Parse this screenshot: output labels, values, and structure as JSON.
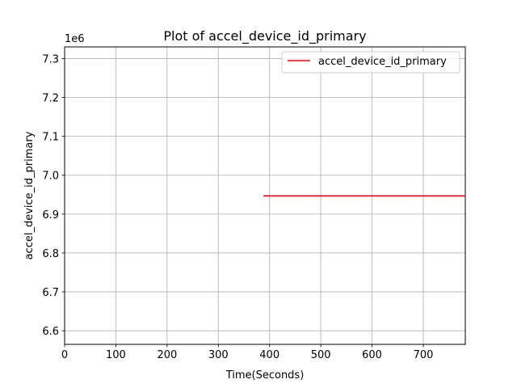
{
  "chart_data": {
    "type": "line",
    "title": "Plot of accel_device_id_primary",
    "xlabel": "Time(Seconds)",
    "ylabel": "accel_device_id_primary",
    "y_offset_text": "1e6",
    "xlim": [
      0,
      782
    ],
    "ylim": [
      6565000,
      7330000
    ],
    "x_ticks": [
      0,
      100,
      200,
      300,
      400,
      500,
      600,
      700
    ],
    "x_tick_labels": [
      "0",
      "100",
      "200",
      "300",
      "400",
      "500",
      "600",
      "700"
    ],
    "y_ticks": [
      6600000,
      6700000,
      6800000,
      6900000,
      7000000,
      7100000,
      7200000,
      7300000
    ],
    "y_tick_labels": [
      "6.6",
      "6.7",
      "6.8",
      "6.9",
      "7.0",
      "7.1",
      "7.2",
      "7.3"
    ],
    "grid": true,
    "legend_position": "top-right",
    "series": [
      {
        "name": "accel_device_id_primary",
        "color": "#ff0000",
        "x": [
          388,
          782
        ],
        "y": [
          6947000,
          6947000
        ]
      }
    ]
  }
}
